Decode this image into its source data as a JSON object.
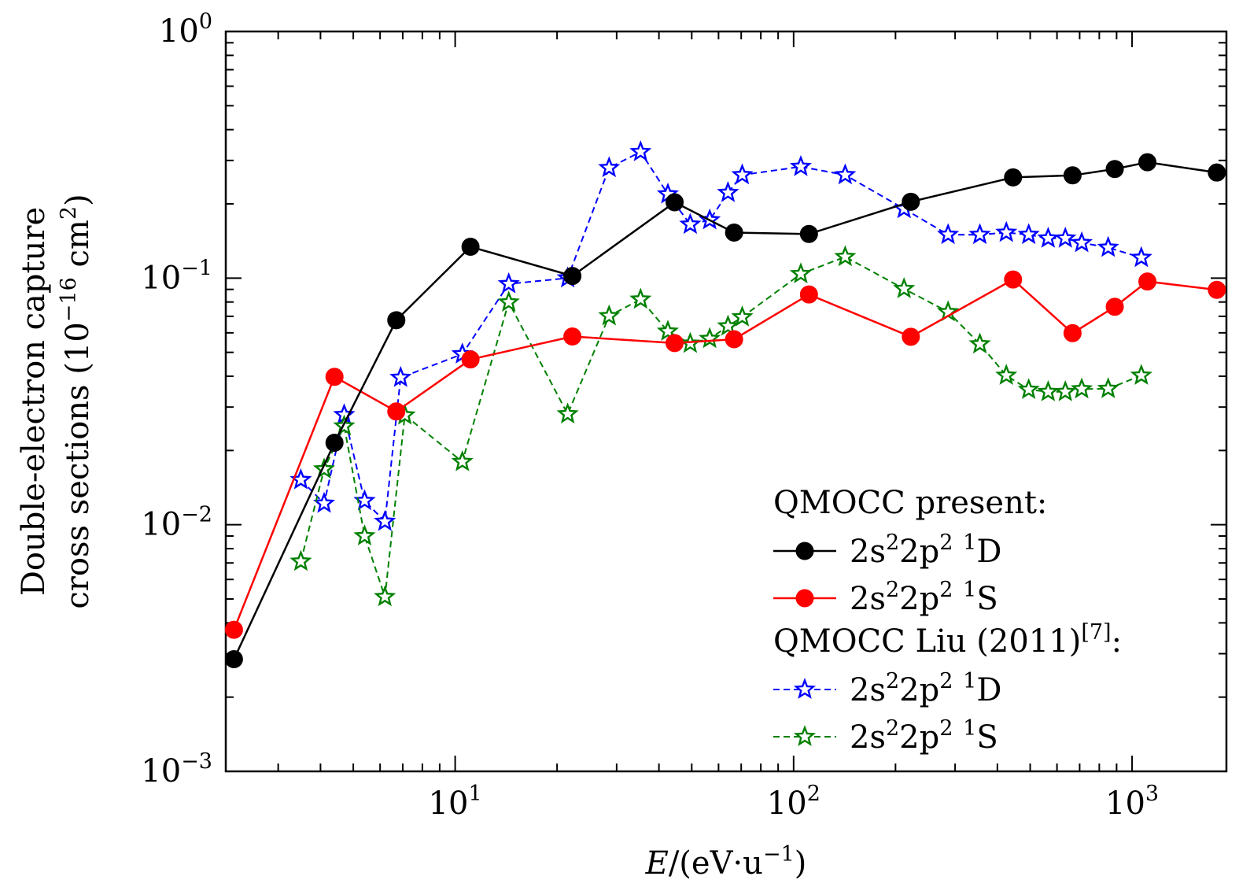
{
  "chart_data": {
    "type": "line",
    "xscale": "log",
    "yscale": "log",
    "xlim": [
      2.1,
      1900
    ],
    "ylim": [
      0.001,
      1
    ],
    "grid": false,
    "legend_position": "lower-right",
    "xlabel": {
      "italic": "E",
      "before_sup": "/(eV·u",
      "sup": "−1",
      "after_sup": ")"
    },
    "ylabel": {
      "line1": "Double-electron capture",
      "line2_before": "cross sections (10",
      "line2_sup1": "−16",
      "line2_mid": " cm",
      "line2_sup2": "2",
      "line2_after": ")"
    },
    "x_ticks": [
      {
        "value": 10,
        "base": "10",
        "exp": "1"
      },
      {
        "value": 100,
        "base": "10",
        "exp": "2"
      },
      {
        "value": 1000,
        "base": "10",
        "exp": "3"
      }
    ],
    "y_ticks": [
      {
        "value": 1,
        "base": "10",
        "exp": "0"
      },
      {
        "value": 0.1,
        "base": "10",
        "exp": "−1"
      },
      {
        "value": 0.01,
        "base": "10",
        "exp": "−2"
      },
      {
        "value": 0.001,
        "base": "10",
        "exp": "−3"
      }
    ],
    "legend": {
      "group1": "QMOCC present:",
      "group2": {
        "text": "QMOCC Liu (2011)",
        "sup": "[7]",
        "after": ":"
      }
    },
    "series": [
      {
        "group": 1,
        "label": {
          "a": "2s",
          "b": "2",
          "c": "2p",
          "d": "2",
          "e": "1",
          "f": "D"
        },
        "color": "#000000",
        "marker": "circle",
        "dash": "solid",
        "x": [
          2.22,
          4.4,
          6.7,
          11.1,
          22.2,
          44.5,
          66.7,
          111,
          222,
          445,
          667,
          889,
          1110,
          1780
        ],
        "y": [
          0.00285,
          0.0215,
          0.0675,
          0.134,
          0.102,
          0.203,
          0.153,
          0.151,
          0.204,
          0.256,
          0.261,
          0.277,
          0.295,
          0.268
        ]
      },
      {
        "group": 1,
        "label": {
          "a": "2s",
          "b": "2",
          "c": "2p",
          "d": "2",
          "e": "1",
          "f": "S"
        },
        "color": "#ff0000",
        "marker": "circle",
        "dash": "solid",
        "x": [
          2.22,
          4.4,
          6.7,
          11.1,
          22.2,
          44.5,
          66.7,
          111,
          222,
          445,
          667,
          889,
          1110,
          1780
        ],
        "y": [
          0.00375,
          0.0398,
          0.0288,
          0.0468,
          0.058,
          0.0545,
          0.0565,
          0.0858,
          0.0578,
          0.0987,
          0.0598,
          0.0765,
          0.0969,
          0.0896
        ]
      },
      {
        "group": 2,
        "label": {
          "a": "2s",
          "b": "2",
          "c": "2p",
          "d": "2",
          "e": "1",
          "f": "D"
        },
        "color": "#0000ff",
        "marker": "star",
        "dash": "dashed",
        "x": [
          3.5,
          4.1,
          4.7,
          5.4,
          6.2,
          6.9,
          10.5,
          14.4,
          21.5,
          28.5,
          35.3,
          42.5,
          49.5,
          56.5,
          64,
          70.5,
          105,
          142,
          212,
          286,
          355,
          425,
          495,
          565,
          635,
          710,
          850,
          1065
        ],
        "y": [
          0.0152,
          0.0122,
          0.0279,
          0.0125,
          0.0103,
          0.0395,
          0.0492,
          0.0947,
          0.1,
          0.28,
          0.325,
          0.219,
          0.165,
          0.172,
          0.222,
          0.262,
          0.283,
          0.262,
          0.191,
          0.15,
          0.15,
          0.153,
          0.15,
          0.145,
          0.145,
          0.139,
          0.133,
          0.121
        ]
      },
      {
        "group": 2,
        "label": {
          "a": "2s",
          "b": "2",
          "c": "2p",
          "d": "2",
          "e": "1",
          "f": "S"
        },
        "color": "#008000",
        "marker": "star",
        "dash": "dashed",
        "x": [
          3.5,
          4.1,
          4.7,
          5.4,
          6.2,
          7.1,
          10.5,
          14.4,
          21.5,
          28.5,
          35.3,
          42.5,
          49.5,
          56.5,
          64,
          70.5,
          105,
          142,
          212,
          286,
          355,
          425,
          495,
          565,
          635,
          710,
          850,
          1065
        ],
        "y": [
          0.0071,
          0.0168,
          0.0251,
          0.009,
          0.0051,
          0.0278,
          0.018,
          0.0798,
          0.0281,
          0.0702,
          0.082,
          0.0608,
          0.0543,
          0.0568,
          0.0638,
          0.0695,
          0.104,
          0.122,
          0.0905,
          0.0729,
          0.054,
          0.0403,
          0.0353,
          0.0346,
          0.0346,
          0.0355,
          0.0356,
          0.0403
        ]
      }
    ]
  }
}
